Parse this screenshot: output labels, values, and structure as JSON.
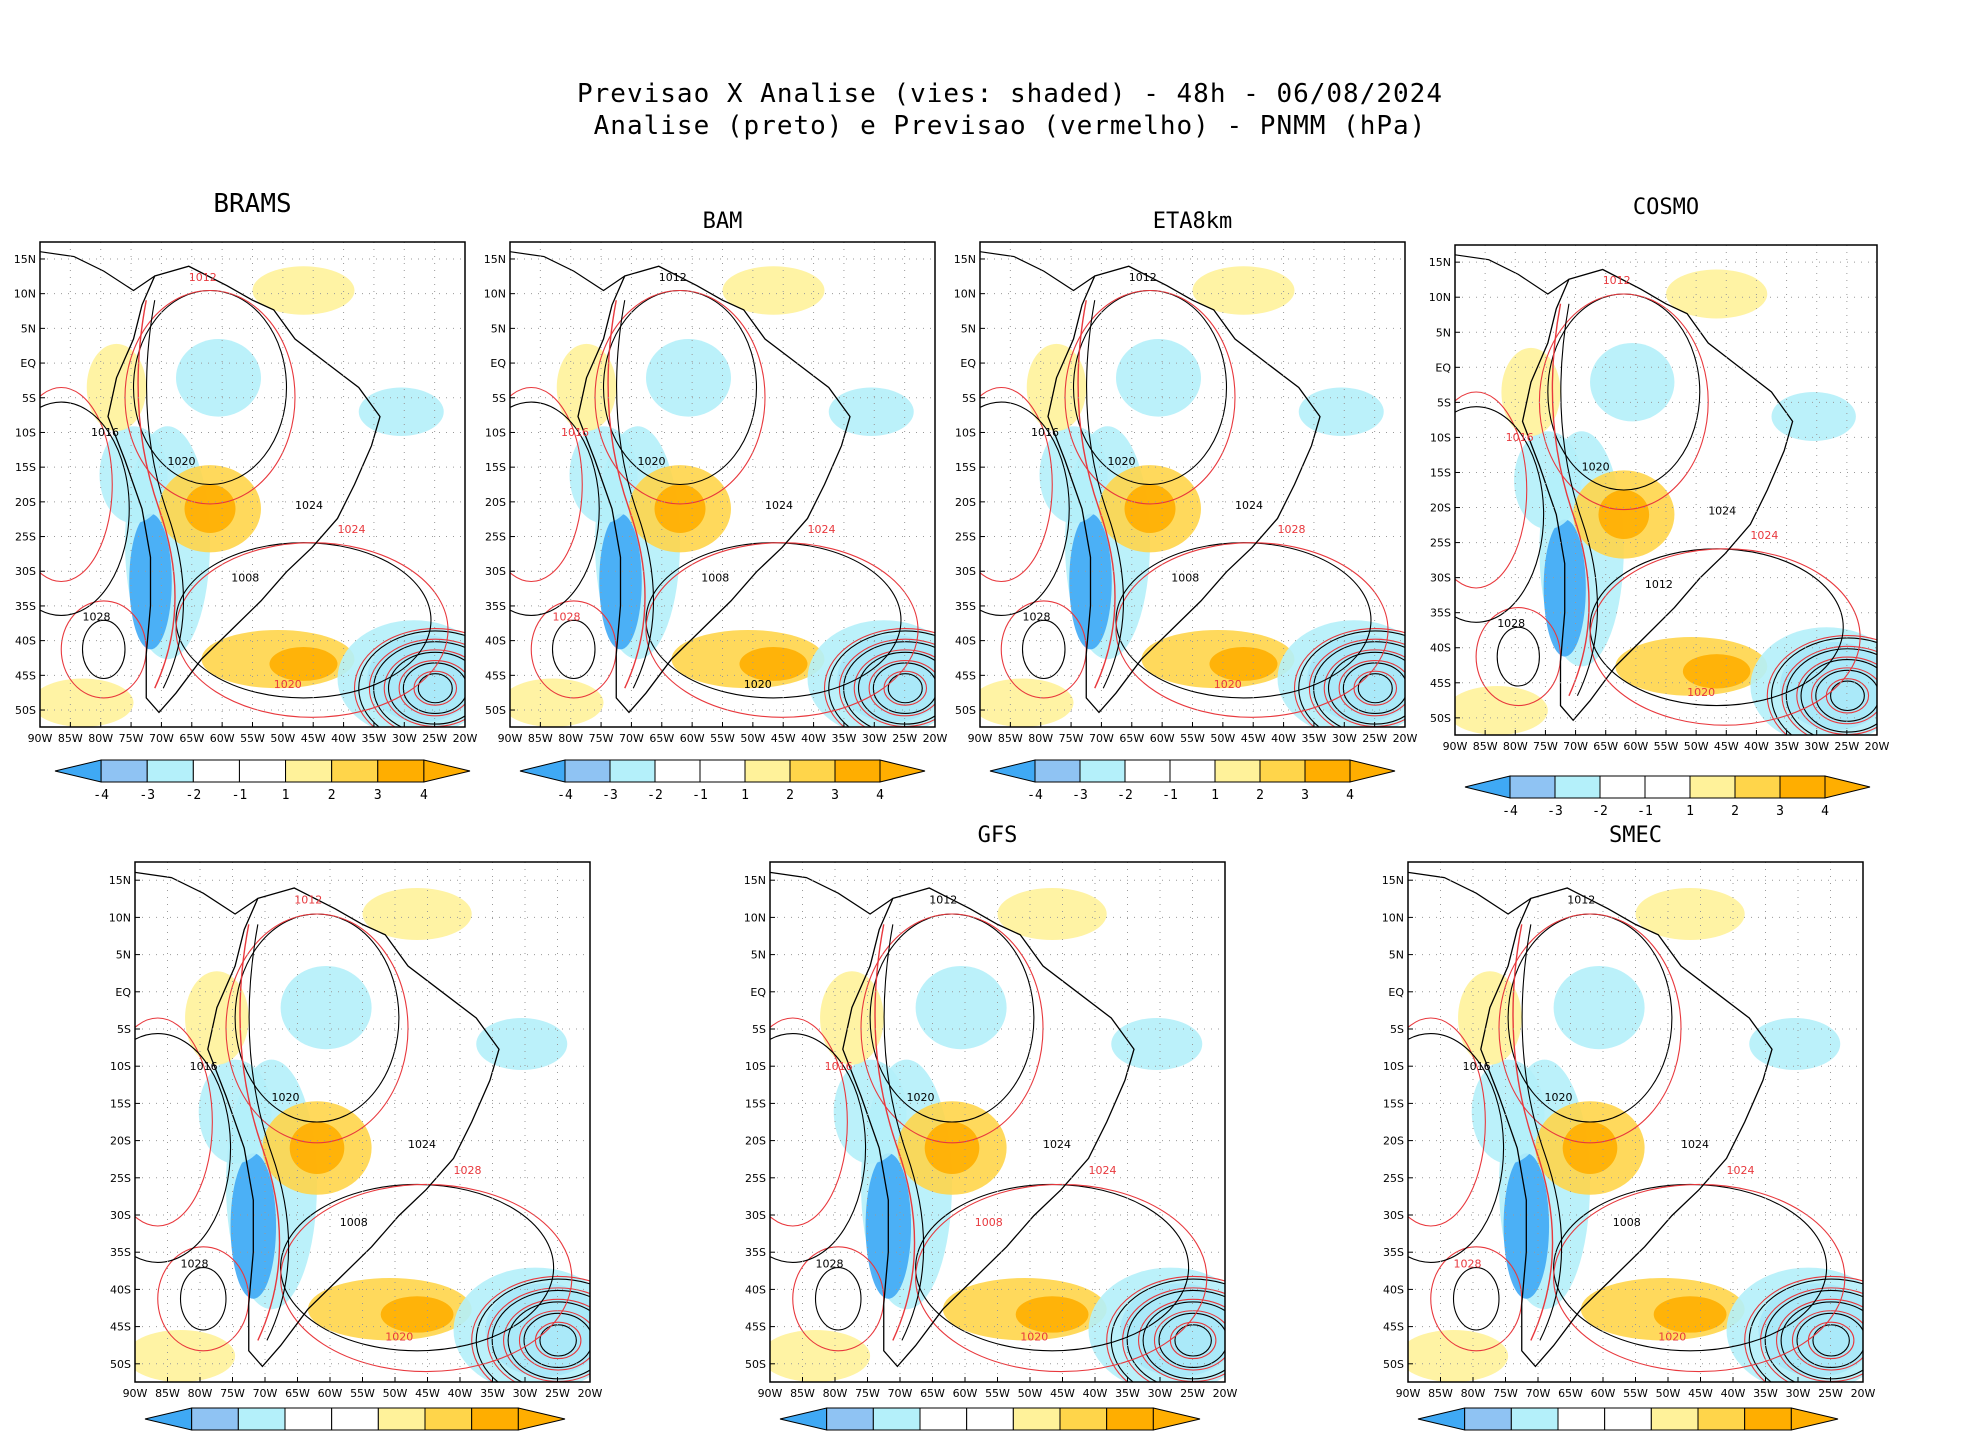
{
  "title": {
    "line1": "Previsao X Analise (vies: shaded) - 48h - 06/08/2024",
    "line2": "Analise (preto) e Previsao (vermelho) - PNMM (hPa)"
  },
  "colors": {
    "neg4": "#3fa9f5",
    "neg3": "#8fc3f3",
    "neg2": "#b4f0fa",
    "neg1": "#ffffff",
    "pos1": "#ffffff",
    "pos2": "#fff29a",
    "pos3": "#ffd54a",
    "pos4": "#ffae00",
    "analysis": "#000000",
    "forecast": "#e8383d"
  },
  "lat_labels": [
    "15N",
    "10N",
    "5N",
    "EQ",
    "5S",
    "10S",
    "15S",
    "20S",
    "25S",
    "30S",
    "35S",
    "40S",
    "45S",
    "50S"
  ],
  "lon_labels": [
    "90W",
    "85W",
    "80W",
    "75W",
    "70W",
    "65W",
    "60W",
    "55W",
    "50W",
    "45W",
    "40W",
    "35W",
    "30W",
    "25W",
    "20W"
  ],
  "colorbar_labels": [
    "-4",
    "-3",
    "-2",
    "-1",
    "1",
    "2",
    "3",
    "4"
  ],
  "panels": [
    {
      "id": "brams",
      "title": "BRAMS",
      "contours": [
        {
          "text": "1012",
          "color": "red"
        },
        {
          "text": "1016",
          "color": "black"
        },
        {
          "text": "1020",
          "color": "black"
        },
        {
          "text": "1024",
          "color": "black"
        },
        {
          "text": "1028",
          "color": "black"
        },
        {
          "text": "1008",
          "color": "black"
        },
        {
          "text": "1024",
          "color": "red"
        },
        {
          "text": "1020",
          "color": "red"
        }
      ]
    },
    {
      "id": "bam",
      "title": "BAM",
      "contours": [
        {
          "text": "1012",
          "color": "black"
        },
        {
          "text": "1016",
          "color": "red"
        },
        {
          "text": "1020",
          "color": "black"
        },
        {
          "text": "1024",
          "color": "black"
        },
        {
          "text": "1028",
          "color": "red"
        },
        {
          "text": "1008",
          "color": "black"
        },
        {
          "text": "1024",
          "color": "red"
        },
        {
          "text": "1020",
          "color": "black"
        }
      ]
    },
    {
      "id": "eta8km",
      "title": "ETA8km",
      "contours": [
        {
          "text": "1012",
          "color": "black"
        },
        {
          "text": "1016",
          "color": "black"
        },
        {
          "text": "1020",
          "color": "black"
        },
        {
          "text": "1024",
          "color": "black"
        },
        {
          "text": "1028",
          "color": "black"
        },
        {
          "text": "1008",
          "color": "black"
        },
        {
          "text": "1028",
          "color": "red"
        },
        {
          "text": "1020",
          "color": "red"
        }
      ]
    },
    {
      "id": "cosmo",
      "title": "COSMO",
      "contours": [
        {
          "text": "1012",
          "color": "red"
        },
        {
          "text": "1016",
          "color": "red"
        },
        {
          "text": "1020",
          "color": "black"
        },
        {
          "text": "1024",
          "color": "black"
        },
        {
          "text": "1028",
          "color": "black"
        },
        {
          "text": "1012",
          "color": "black"
        },
        {
          "text": "1024",
          "color": "red"
        },
        {
          "text": "1020",
          "color": "red"
        }
      ]
    },
    {
      "id": "panel5",
      "title": "",
      "contours": [
        {
          "text": "1012",
          "color": "red"
        },
        {
          "text": "1016",
          "color": "black"
        },
        {
          "text": "1020",
          "color": "black"
        },
        {
          "text": "1024",
          "color": "black"
        },
        {
          "text": "1028",
          "color": "black"
        },
        {
          "text": "1008",
          "color": "black"
        },
        {
          "text": "1028",
          "color": "red"
        },
        {
          "text": "1020",
          "color": "red"
        }
      ]
    },
    {
      "id": "gfs",
      "title": "GFS",
      "contours": [
        {
          "text": "1012",
          "color": "black"
        },
        {
          "text": "1016",
          "color": "red"
        },
        {
          "text": "1020",
          "color": "black"
        },
        {
          "text": "1024",
          "color": "black"
        },
        {
          "text": "1028",
          "color": "black"
        },
        {
          "text": "1008",
          "color": "red"
        },
        {
          "text": "1024",
          "color": "red"
        },
        {
          "text": "1020",
          "color": "red"
        }
      ]
    },
    {
      "id": "smec",
      "title": "SMEC",
      "contours": [
        {
          "text": "1012",
          "color": "black"
        },
        {
          "text": "1016",
          "color": "black"
        },
        {
          "text": "1020",
          "color": "black"
        },
        {
          "text": "1024",
          "color": "black"
        },
        {
          "text": "1028",
          "color": "red"
        },
        {
          "text": "1008",
          "color": "black"
        },
        {
          "text": "1024",
          "color": "red"
        },
        {
          "text": "1020",
          "color": "red"
        }
      ]
    }
  ]
}
